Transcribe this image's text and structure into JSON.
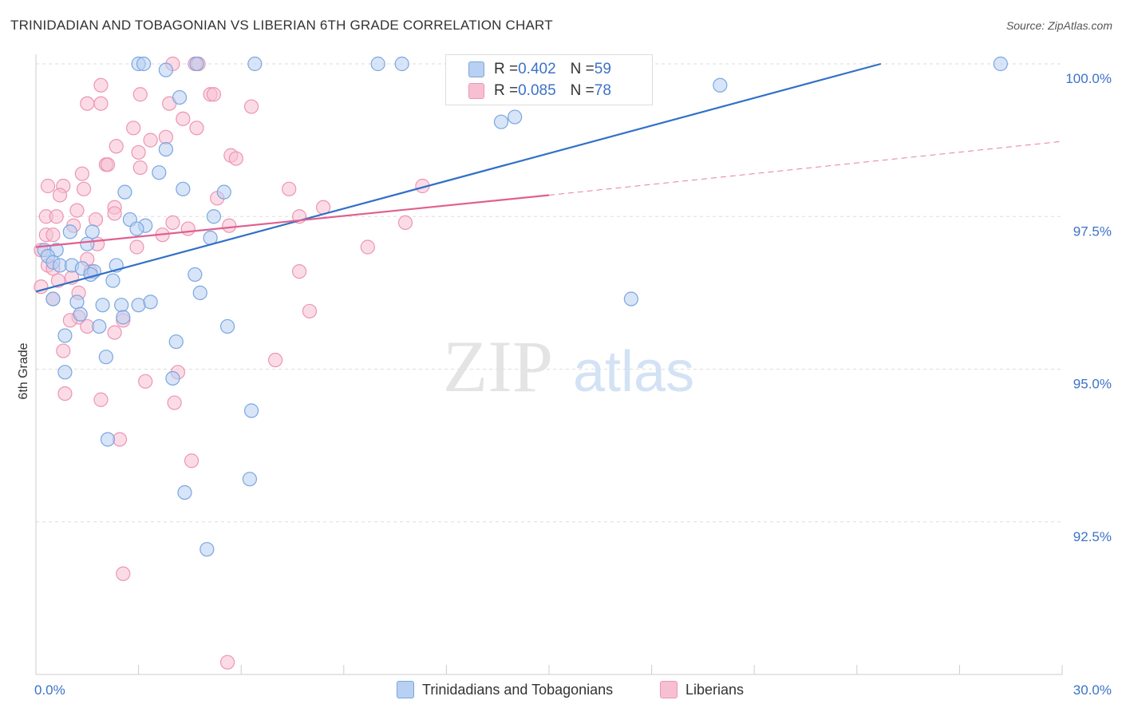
{
  "header": {
    "title": "TRINIDADIAN AND TOBAGONIAN VS LIBERIAN 6TH GRADE CORRELATION CHART",
    "source": "Source: ZipAtlas.com"
  },
  "watermark": {
    "zip": "ZIP",
    "atlas": "atlas"
  },
  "legend": {
    "series1": {
      "r_label": "R = ",
      "r_value": "0.402",
      "n_label": "N = ",
      "n_value": "59"
    },
    "series2": {
      "r_label": "R = ",
      "r_value": "0.085",
      "n_label": "N = ",
      "n_value": "78"
    }
  },
  "colors": {
    "blue_fill": "#b8d0f2",
    "blue_stroke": "#7aa6e0",
    "blue_line": "#3070c8",
    "pink_fill": "#f7c0d2",
    "pink_stroke": "#ec95b3",
    "pink_line": "#e0608f",
    "tick_text": "#3d72c6",
    "grid": "#dddddd"
  },
  "chart_data": {
    "type": "scatter",
    "title": "TRINIDADIAN AND TOBAGONIAN VS LIBERIAN 6TH GRADE CORRELATION CHART",
    "xlabel": "",
    "ylabel": "6th Grade",
    "xlim": [
      0,
      30
    ],
    "ylim": [
      90.0,
      100.0
    ],
    "x_tick_labels": [
      "0.0%",
      "30.0%"
    ],
    "y_ticks": [
      92.5,
      95.0,
      97.5,
      100.0
    ],
    "y_tick_labels": [
      "92.5%",
      "95.0%",
      "97.5%",
      "100.0%"
    ],
    "grid": true,
    "series": [
      {
        "name": "Trinidadians and Tobagonians",
        "color": "#7aa6e0",
        "R": 0.402,
        "N": 59,
        "trend": {
          "x": [
            0.0,
            24.7
          ],
          "y": [
            96.27,
            100.0
          ],
          "style": "solid"
        },
        "points": [
          [
            3.0,
            100.0
          ],
          [
            3.15,
            100.0
          ],
          [
            4.7,
            100.0
          ],
          [
            6.4,
            100.0
          ],
          [
            10.0,
            100.0
          ],
          [
            10.7,
            100.0
          ],
          [
            28.2,
            100.0
          ],
          [
            4.2,
            99.45
          ],
          [
            20.0,
            99.65
          ],
          [
            13.6,
            99.05
          ],
          [
            14.0,
            99.13
          ],
          [
            3.8,
            98.6
          ],
          [
            3.6,
            98.22
          ],
          [
            2.6,
            97.9
          ],
          [
            4.3,
            97.95
          ],
          [
            5.5,
            97.9
          ],
          [
            2.75,
            97.45
          ],
          [
            3.2,
            97.35
          ],
          [
            5.2,
            97.5
          ],
          [
            1.0,
            97.25
          ],
          [
            1.65,
            97.25
          ],
          [
            1.5,
            97.05
          ],
          [
            5.1,
            97.15
          ],
          [
            0.25,
            96.95
          ],
          [
            0.6,
            96.95
          ],
          [
            0.35,
            96.85
          ],
          [
            0.5,
            96.75
          ],
          [
            0.7,
            96.7
          ],
          [
            1.05,
            96.7
          ],
          [
            1.35,
            96.65
          ],
          [
            1.7,
            96.6
          ],
          [
            2.35,
            96.7
          ],
          [
            4.65,
            96.55
          ],
          [
            2.25,
            96.45
          ],
          [
            0.5,
            96.15
          ],
          [
            4.8,
            96.25
          ],
          [
            1.2,
            96.1
          ],
          [
            1.95,
            96.05
          ],
          [
            2.5,
            96.05
          ],
          [
            3.0,
            96.05
          ],
          [
            3.35,
            96.1
          ],
          [
            1.3,
            95.9
          ],
          [
            2.55,
            95.85
          ],
          [
            1.85,
            95.7
          ],
          [
            5.6,
            95.7
          ],
          [
            0.85,
            95.55
          ],
          [
            4.1,
            95.45
          ],
          [
            2.05,
            95.2
          ],
          [
            0.85,
            94.95
          ],
          [
            4.0,
            94.85
          ],
          [
            6.3,
            94.32
          ],
          [
            2.1,
            93.85
          ],
          [
            6.25,
            93.2
          ],
          [
            4.35,
            92.98
          ],
          [
            5.0,
            92.05
          ],
          [
            17.4,
            96.15
          ],
          [
            3.8,
            99.9
          ],
          [
            2.95,
            97.3
          ],
          [
            1.6,
            96.55
          ]
        ]
      },
      {
        "name": "Liberians",
        "color": "#ec95b3",
        "R": 0.085,
        "N": 78,
        "trend": {
          "x": [
            0.0,
            15.0
          ],
          "y": [
            97.0,
            97.85
          ],
          "style": "solid",
          "dash_extension": {
            "x": [
              15.0,
              30.0
            ],
            "y": [
              97.85,
              98.73
            ]
          }
        },
        "points": [
          [
            4.0,
            100.0
          ],
          [
            4.65,
            100.0
          ],
          [
            4.75,
            100.0
          ],
          [
            1.9,
            99.65
          ],
          [
            3.05,
            99.5
          ],
          [
            5.1,
            99.5
          ],
          [
            5.2,
            99.5
          ],
          [
            1.5,
            99.35
          ],
          [
            1.9,
            99.35
          ],
          [
            3.9,
            99.35
          ],
          [
            6.3,
            99.3
          ],
          [
            4.3,
            99.1
          ],
          [
            2.85,
            98.95
          ],
          [
            4.7,
            98.95
          ],
          [
            3.8,
            98.8
          ],
          [
            3.35,
            98.75
          ],
          [
            2.35,
            98.65
          ],
          [
            3.0,
            98.55
          ],
          [
            5.7,
            98.5
          ],
          [
            3.05,
            98.3
          ],
          [
            2.05,
            98.35
          ],
          [
            2.1,
            98.35
          ],
          [
            1.35,
            98.2
          ],
          [
            0.35,
            98.0
          ],
          [
            0.8,
            98.0
          ],
          [
            0.7,
            97.85
          ],
          [
            1.4,
            97.95
          ],
          [
            7.4,
            97.95
          ],
          [
            11.3,
            98.0
          ],
          [
            5.3,
            97.8
          ],
          [
            8.4,
            97.65
          ],
          [
            2.3,
            97.65
          ],
          [
            2.3,
            97.55
          ],
          [
            0.3,
            97.5
          ],
          [
            0.6,
            97.5
          ],
          [
            7.7,
            97.5
          ],
          [
            1.75,
            97.45
          ],
          [
            4.0,
            97.4
          ],
          [
            1.1,
            97.35
          ],
          [
            4.45,
            97.3
          ],
          [
            5.65,
            97.35
          ],
          [
            10.8,
            97.4
          ],
          [
            0.3,
            97.2
          ],
          [
            0.5,
            97.2
          ],
          [
            3.7,
            97.2
          ],
          [
            1.8,
            97.05
          ],
          [
            2.95,
            97.0
          ],
          [
            9.7,
            97.0
          ],
          [
            0.15,
            96.95
          ],
          [
            1.5,
            96.8
          ],
          [
            1.6,
            96.6
          ],
          [
            0.35,
            96.7
          ],
          [
            0.5,
            96.65
          ],
          [
            7.7,
            96.6
          ],
          [
            1.05,
            96.5
          ],
          [
            0.65,
            96.45
          ],
          [
            0.15,
            96.35
          ],
          [
            1.25,
            96.25
          ],
          [
            0.5,
            96.15
          ],
          [
            8.0,
            95.95
          ],
          [
            1.25,
            95.85
          ],
          [
            1.0,
            95.8
          ],
          [
            2.55,
            95.8
          ],
          [
            1.5,
            95.7
          ],
          [
            2.3,
            95.6
          ],
          [
            0.8,
            95.3
          ],
          [
            7.0,
            95.15
          ],
          [
            4.15,
            94.95
          ],
          [
            3.2,
            94.8
          ],
          [
            0.85,
            94.6
          ],
          [
            1.9,
            94.5
          ],
          [
            4.05,
            94.45
          ],
          [
            2.45,
            93.85
          ],
          [
            4.55,
            93.5
          ],
          [
            2.55,
            91.65
          ],
          [
            5.6,
            90.2
          ],
          [
            5.85,
            98.45
          ],
          [
            1.2,
            97.6
          ]
        ]
      }
    ]
  }
}
